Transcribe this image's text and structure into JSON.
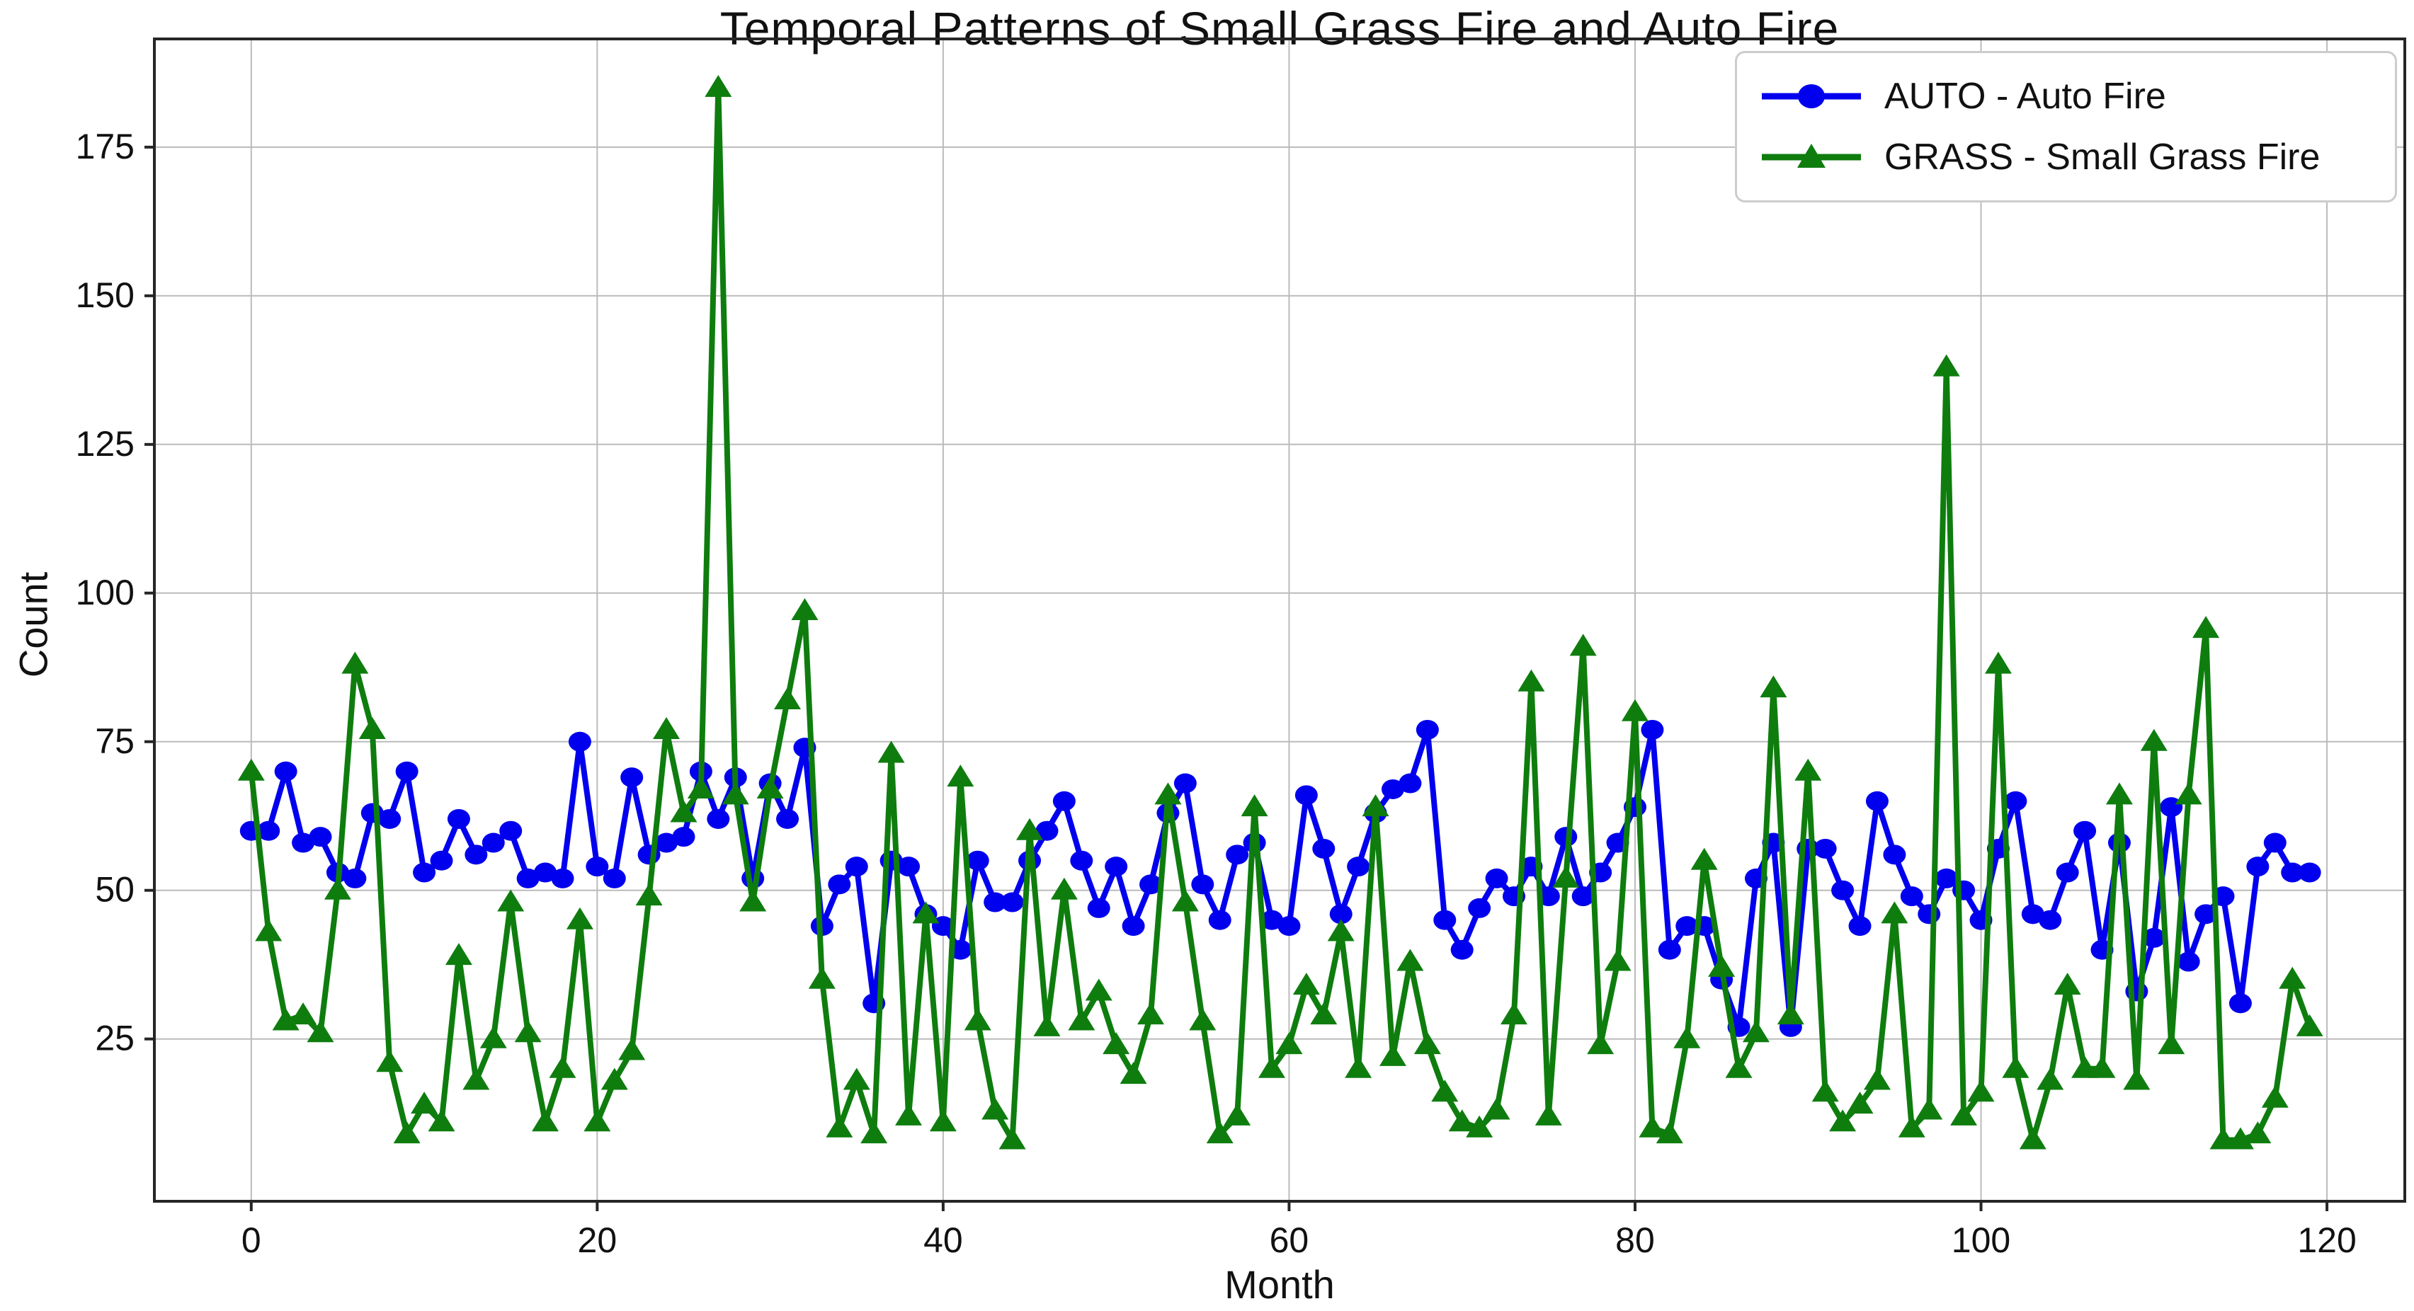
{
  "title": "Temporal Patterns of Small Grass Fire and Auto Fire",
  "axes": {
    "xlabel": "Month",
    "ylabel": "Count",
    "x_ticks": [
      0,
      20,
      40,
      60,
      80,
      100,
      120
    ],
    "y_ticks": [
      25,
      50,
      75,
      100,
      125,
      150,
      175
    ],
    "xlim": [
      -5.6,
      124.5
    ],
    "ylim": [
      -2.3,
      193.2
    ],
    "grid": true,
    "tick_color": "#111111",
    "grid_color": "#bbbbbb",
    "spine_color": "#262626"
  },
  "legend": {
    "position": "upper-right",
    "items": [
      {
        "label": "AUTO - Auto Fire",
        "color": "#0000ee",
        "marker": "circle"
      },
      {
        "label": "GRASS - Small Grass Fire",
        "color": "#0e7d0e",
        "marker": "triangle"
      }
    ]
  },
  "chart_data": {
    "type": "line",
    "title": "Temporal Patterns of Small Grass Fire and Auto Fire",
    "xlabel": "Month",
    "ylabel": "Count",
    "x": {
      "start": 0,
      "step": 1,
      "count": 120
    },
    "xlim": [
      -5.6,
      124.5
    ],
    "ylim": [
      -2.3,
      193.2
    ],
    "grid": true,
    "legend_position": "upper right",
    "series": [
      {
        "name": "AUTO - Auto Fire",
        "color": "#0000ee",
        "marker": "circle",
        "values": [
          60,
          60,
          70,
          58,
          59,
          53,
          52,
          63,
          62,
          70,
          53,
          55,
          62,
          56,
          58,
          60,
          52,
          53,
          52,
          75,
          54,
          52,
          69,
          56,
          58,
          59,
          70,
          62,
          69,
          52,
          68,
          62,
          74,
          44,
          51,
          54,
          31,
          55,
          54,
          46,
          44,
          40,
          55,
          48,
          48,
          55,
          60,
          65,
          55,
          47,
          54,
          44,
          51,
          63,
          68,
          51,
          45,
          56,
          58,
          45,
          44,
          66,
          57,
          46,
          54,
          63,
          67,
          68,
          77,
          45,
          40,
          47,
          52,
          49,
          54,
          49,
          59,
          49,
          53,
          58,
          64,
          77,
          40,
          44,
          44,
          35,
          27,
          52,
          58,
          27,
          57,
          57,
          50,
          44,
          65,
          56,
          49,
          46,
          52,
          50,
          45,
          57,
          65,
          46,
          45,
          53,
          60,
          40,
          58,
          33,
          42,
          64,
          38,
          46,
          49,
          31,
          54,
          58,
          53,
          53
        ]
      },
      {
        "name": "GRASS - Small Grass Fire",
        "color": "#0e7d0e",
        "marker": "triangle",
        "values": [
          70,
          43,
          28,
          29,
          26,
          50,
          88,
          77,
          21,
          9,
          14,
          11,
          39,
          18,
          25,
          48,
          26,
          11,
          20,
          45,
          11,
          18,
          23,
          49,
          77,
          63,
          67,
          185,
          66,
          48,
          67,
          82,
          97,
          35,
          10,
          18,
          9,
          73,
          12,
          46,
          11,
          69,
          28,
          13,
          8,
          60,
          27,
          50,
          28,
          33,
          24,
          19,
          29,
          66,
          48,
          28,
          9,
          12,
          64,
          20,
          24,
          34,
          29,
          43,
          20,
          64,
          22,
          38,
          24,
          16,
          11,
          10,
          13,
          29,
          85,
          12,
          52,
          91,
          24,
          38,
          80,
          10,
          9,
          25,
          55,
          37,
          20,
          26,
          84,
          29,
          70,
          16,
          11,
          14,
          18,
          46,
          10,
          13,
          138,
          12,
          16,
          88,
          20,
          8,
          18,
          34,
          20,
          20,
          66,
          18,
          75,
          24,
          66,
          94,
          8,
          8,
          9,
          15,
          35,
          27
        ]
      }
    ]
  }
}
